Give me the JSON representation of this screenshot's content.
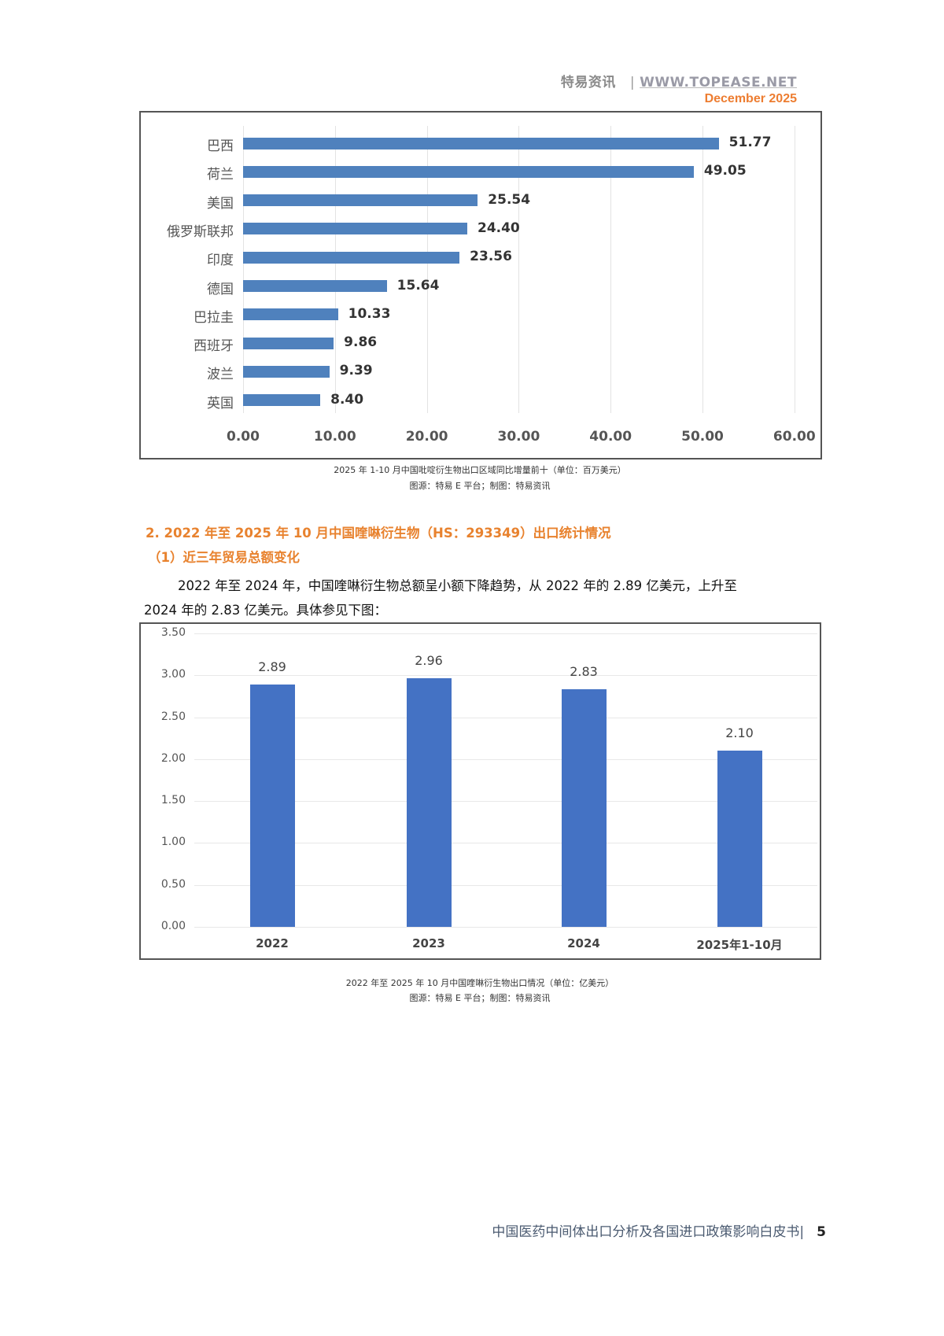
{
  "header": {
    "brand": "特易资讯",
    "separator": "|",
    "url": "WWW.TOPEASE.NET",
    "date": "December  2025"
  },
  "colors": {
    "accent_orange": "#E8822E",
    "bar_blue_1": "#4F81BD",
    "bar_blue_2": "#4472C4"
  },
  "chart1": {
    "caption_line1": "2025  年  1-10  月中国吡啶衍生物出口区域同比增量前十（单位：百万美元）",
    "caption_line2": "图源：特易  E  平台；制图：特易资讯"
  },
  "section": {
    "heading": "2. 2022  年至  2025  年  10  月中国喹啉衍生物（HS：293349）出口统计情况",
    "subheading": "（1）近三年贸易总额变化",
    "paragraph_line1": "2022 年至 2024 年，中国喹啉衍生物总额呈小额下降趋势，从 2022 年的 2.89 亿美元，上升至",
    "paragraph_line2": "2024 年的 2.83 亿美元。具体参见下图："
  },
  "chart2": {
    "caption_line1": "2022  年至  2025  年  10  月中国喹啉衍生物出口情况（单位：亿美元）",
    "caption_line2": "图源：特易  E  平台；制图：特易资讯"
  },
  "footer": {
    "title": "中国医药中间体出口分析及各国进口政策影响白皮书|",
    "page": "5"
  },
  "chart_data": [
    {
      "type": "bar",
      "orientation": "horizontal",
      "title": "2025 年 1-10 月中国吡啶衍生物出口区域同比增量前十（单位：百万美元）",
      "categories": [
        "巴西",
        "荷兰",
        "美国",
        "俄罗斯联邦",
        "印度",
        "德国",
        "巴拉圭",
        "西班牙",
        "波兰",
        "英国"
      ],
      "values": [
        51.77,
        49.05,
        25.54,
        24.4,
        23.56,
        15.64,
        10.33,
        9.86,
        9.39,
        8.4
      ],
      "value_labels": [
        "51.77",
        "49.05",
        "25.54",
        "24.40",
        "23.56",
        "15.64",
        "10.33",
        "9.86",
        "9.39",
        "8.40"
      ],
      "xticks": [
        "0.00",
        "10.00",
        "20.00",
        "30.00",
        "40.00",
        "50.00",
        "60.00"
      ],
      "xlim": [
        0,
        60
      ],
      "xlabel": "",
      "ylabel": "",
      "grid": true,
      "legend": "none",
      "color": "#4F81BD"
    },
    {
      "type": "bar",
      "orientation": "vertical",
      "title": "2022 年至 2025 年 10 月中国喹啉衍生物出口情况（单位：亿美元）",
      "categories": [
        "2022",
        "2023",
        "2024",
        "2025年1-10月"
      ],
      "values": [
        2.89,
        2.96,
        2.83,
        2.1
      ],
      "value_labels": [
        "2.89",
        "2.96",
        "2.83",
        "2.10"
      ],
      "yticks": [
        "0.00",
        "0.50",
        "1.00",
        "1.50",
        "2.00",
        "2.50",
        "3.00",
        "3.50"
      ],
      "ylim": [
        0,
        3.5
      ],
      "xlabel": "",
      "ylabel": "",
      "grid": true,
      "legend": "none",
      "color": "#4472C4"
    }
  ]
}
